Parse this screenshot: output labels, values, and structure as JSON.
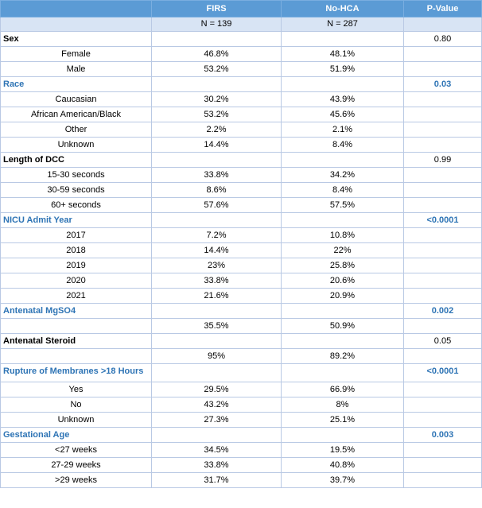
{
  "header": {
    "col1": "FIRS",
    "col2": "No-HCA",
    "col3": "P-Value"
  },
  "counts": {
    "col1": "N = 139",
    "col2": "N = 287"
  },
  "rows": [
    {
      "kind": "cat",
      "label": "Sex",
      "p": "0.80",
      "sig": false
    },
    {
      "kind": "sub",
      "label": "Female",
      "a": "46.8%",
      "b": "48.1%"
    },
    {
      "kind": "sub",
      "label": "Male",
      "a": "53.2%",
      "b": "51.9%"
    },
    {
      "kind": "cat",
      "label": "Race",
      "p": "0.03",
      "sig": true
    },
    {
      "kind": "sub",
      "label": "Caucasian",
      "a": "30.2%",
      "b": "43.9%"
    },
    {
      "kind": "sub",
      "label": "African American/Black",
      "a": "53.2%",
      "b": "45.6%"
    },
    {
      "kind": "sub",
      "label": "Other",
      "a": "2.2%",
      "b": "2.1%"
    },
    {
      "kind": "sub",
      "label": "Unknown",
      "a": "14.4%",
      "b": "8.4%"
    },
    {
      "kind": "cat",
      "label": "Length of DCC",
      "p": "0.99",
      "sig": false
    },
    {
      "kind": "sub",
      "label": "15-30 seconds",
      "a": "33.8%",
      "b": "34.2%"
    },
    {
      "kind": "sub",
      "label": "30-59 seconds",
      "a": "8.6%",
      "b": "8.4%"
    },
    {
      "kind": "sub",
      "label": "60+ seconds",
      "a": "57.6%",
      "b": "57.5%"
    },
    {
      "kind": "cat",
      "label": "NICU Admit Year",
      "p": "<0.0001",
      "sig": true
    },
    {
      "kind": "sub",
      "label": "2017",
      "a": "7.2%",
      "b": "10.8%"
    },
    {
      "kind": "sub",
      "label": "2018",
      "a": "14.4%",
      "b": "22%"
    },
    {
      "kind": "sub",
      "label": "2019",
      "a": "23%",
      "b": "25.8%"
    },
    {
      "kind": "sub",
      "label": "2020",
      "a": "33.8%",
      "b": "20.6%"
    },
    {
      "kind": "sub",
      "label": "2021",
      "a": "21.6%",
      "b": "20.9%"
    },
    {
      "kind": "cat",
      "label": "Antenatal MgSO4",
      "p": "0.002",
      "sig": true
    },
    {
      "kind": "sub",
      "label": "",
      "a": "35.5%",
      "b": "50.9%"
    },
    {
      "kind": "cat",
      "label": "Antenatal Steroid",
      "p": "0.05",
      "sig": false
    },
    {
      "kind": "sub",
      "label": "",
      "a": "95%",
      "b": "89.2%"
    },
    {
      "kind": "cat",
      "label": "Rupture of Membranes >18 Hours",
      "p": "<0.0001",
      "sig": true,
      "wrap": true
    },
    {
      "kind": "sub",
      "label": "Yes",
      "a": "29.5%",
      "b": "66.9%"
    },
    {
      "kind": "sub",
      "label": "No",
      "a": "43.2%",
      "b": "8%"
    },
    {
      "kind": "sub",
      "label": "Unknown",
      "a": "27.3%",
      "b": "25.1%"
    },
    {
      "kind": "cat",
      "label": "Gestational Age",
      "p": "0.003",
      "sig": true
    },
    {
      "kind": "sub",
      "label": "<27 weeks",
      "a": "34.5%",
      "b": "19.5%"
    },
    {
      "kind": "sub",
      "label": "27-29 weeks",
      "a": "33.8%",
      "b": "40.8%"
    },
    {
      "kind": "sub",
      "label": ">29 weeks",
      "a": "31.7%",
      "b": "39.7%"
    }
  ],
  "colors": {
    "header_bg": "#5b9bd5",
    "count_bg": "#d8e4f4",
    "sig_text": "#2e74b5",
    "border": "#b9c9e4"
  }
}
